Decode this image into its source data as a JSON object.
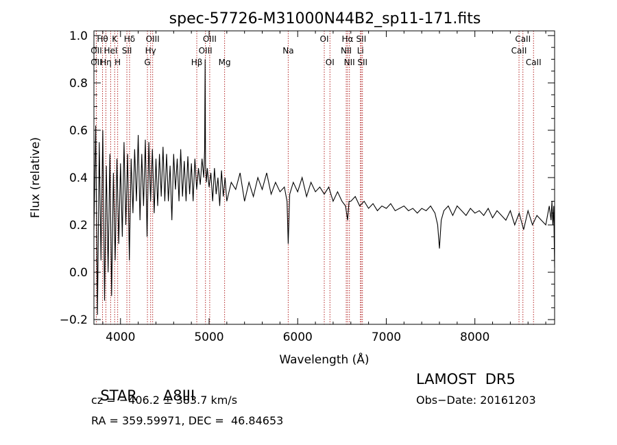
{
  "chart_data": {
    "type": "line",
    "title": "spec-57726-M31000N44B2_sp11-171.fits",
    "xlabel": "Wavelength (Å)",
    "ylabel": "Flux (relative)",
    "xlim": [
      3700,
      8900
    ],
    "ylim": [
      -0.22,
      1.02
    ],
    "xticks": [
      4000,
      5000,
      6000,
      7000,
      8000
    ],
    "yticks": [
      -0.2,
      0.0,
      0.2,
      0.4,
      0.6,
      0.8,
      1.0
    ],
    "xtick_labels": [
      "4000",
      "5000",
      "6000",
      "7000",
      "8000"
    ],
    "ytick_labels": [
      "−0.2",
      "0.0",
      "0.2",
      "0.4",
      "0.6",
      "0.8",
      "1.0"
    ],
    "spectral_lines": [
      {
        "label": "Hθ",
        "wave": 3797,
        "row": 1
      },
      {
        "label": "OII",
        "wave": 3727,
        "row": 2
      },
      {
        "label": "OII",
        "wave": 3727,
        "row": 3
      },
      {
        "label": "Hη",
        "wave": 3835,
        "row": 3
      },
      {
        "label": "K",
        "wave": 3934,
        "row": 1
      },
      {
        "label": "HeI",
        "wave": 3889,
        "row": 2
      },
      {
        "label": "H",
        "wave": 3968,
        "row": 3
      },
      {
        "label": "Hδ",
        "wave": 4102,
        "row": 1
      },
      {
        "label": "SII",
        "wave": 4072,
        "row": 2
      },
      {
        "label": "OIII",
        "wave": 4363,
        "row": 1
      },
      {
        "label": "Hγ",
        "wave": 4340,
        "row": 2
      },
      {
        "label": "G",
        "wave": 4304,
        "row": 3
      },
      {
        "label": "Hβ",
        "wave": 4861,
        "row": 3
      },
      {
        "label": "OIII",
        "wave": 5007,
        "row": 1
      },
      {
        "label": "OIII",
        "wave": 4959,
        "row": 2
      },
      {
        "label": "Mg",
        "wave": 5175,
        "row": 3
      },
      {
        "label": "Na",
        "wave": 5893,
        "row": 2
      },
      {
        "label": "OI",
        "wave": 6300,
        "row": 1
      },
      {
        "label": "OI",
        "wave": 6364,
        "row": 3
      },
      {
        "label": "Hα",
        "wave": 6563,
        "row": 1
      },
      {
        "label": "NII",
        "wave": 6548,
        "row": 2
      },
      {
        "label": "NII",
        "wave": 6584,
        "row": 3
      },
      {
        "label": "SII",
        "wave": 6717,
        "row": 1
      },
      {
        "label": "Li",
        "wave": 6708,
        "row": 2
      },
      {
        "label": "SII",
        "wave": 6731,
        "row": 3
      },
      {
        "label": "CaII",
        "wave": 8542,
        "row": 1
      },
      {
        "label": "CaII",
        "wave": 8498,
        "row": 2
      },
      {
        "label": "CaII",
        "wave": 8662,
        "row": 3
      }
    ],
    "series": [
      {
        "x": [
          3700,
          3720,
          3740,
          3760,
          3780,
          3800,
          3820,
          3840,
          3860,
          3880,
          3900,
          3920,
          3940,
          3960,
          3980,
          4000,
          4020,
          4040,
          4060,
          4080,
          4100,
          4120,
          4140,
          4160,
          4180,
          4200,
          4220,
          4240,
          4260,
          4280,
          4300,
          4320,
          4340,
          4360,
          4380,
          4400,
          4420,
          4440,
          4460,
          4480,
          4500,
          4520,
          4540,
          4560,
          4580,
          4600,
          4620,
          4640,
          4660,
          4680,
          4700,
          4720,
          4740,
          4760,
          4780,
          4800,
          4820,
          4840,
          4860,
          4880,
          4900,
          4920,
          4940,
          4950,
          4955,
          4960,
          4970,
          4980,
          5000,
          5020,
          5040,
          5060,
          5080,
          5100,
          5120,
          5140,
          5160,
          5180,
          5200,
          5250,
          5300,
          5350,
          5400,
          5450,
          5500,
          5550,
          5600,
          5650,
          5700,
          5750,
          5800,
          5850,
          5880,
          5893,
          5910,
          5950,
          6000,
          6050,
          6100,
          6150,
          6200,
          6250,
          6300,
          6350,
          6400,
          6450,
          6500,
          6540,
          6563,
          6580,
          6600,
          6650,
          6700,
          6750,
          6800,
          6850,
          6900,
          6950,
          7000,
          7050,
          7100,
          7150,
          7200,
          7250,
          7300,
          7350,
          7400,
          7450,
          7500,
          7550,
          7580,
          7600,
          7620,
          7650,
          7700,
          7750,
          7800,
          7850,
          7900,
          7950,
          8000,
          8050,
          8100,
          8150,
          8200,
          8250,
          8300,
          8350,
          8400,
          8450,
          8500,
          8550,
          8600,
          8650,
          8700,
          8750,
          8800,
          8840,
          8860,
          8870,
          8880,
          8890,
          8900
        ],
        "y": [
          0.18,
          0.62,
          -0.18,
          0.55,
          0.05,
          0.6,
          -0.12,
          0.45,
          0.0,
          0.5,
          -0.1,
          0.42,
          0.05,
          0.48,
          0.12,
          0.46,
          0.15,
          0.55,
          0.2,
          0.5,
          0.05,
          0.48,
          0.25,
          0.52,
          0.3,
          0.58,
          0.22,
          0.5,
          0.28,
          0.56,
          0.15,
          0.55,
          0.3,
          0.52,
          0.25,
          0.48,
          0.28,
          0.5,
          0.32,
          0.53,
          0.3,
          0.5,
          0.3,
          0.45,
          0.22,
          0.5,
          0.35,
          0.48,
          0.3,
          0.52,
          0.32,
          0.47,
          0.3,
          0.49,
          0.33,
          0.46,
          0.3,
          0.48,
          0.35,
          0.44,
          0.37,
          0.48,
          0.4,
          0.52,
          0.9,
          0.45,
          0.38,
          0.44,
          0.36,
          0.42,
          0.3,
          0.44,
          0.33,
          0.4,
          0.28,
          0.43,
          0.32,
          0.4,
          0.3,
          0.38,
          0.35,
          0.42,
          0.3,
          0.38,
          0.32,
          0.4,
          0.35,
          0.42,
          0.33,
          0.38,
          0.34,
          0.36,
          0.3,
          0.12,
          0.33,
          0.38,
          0.34,
          0.4,
          0.32,
          0.38,
          0.34,
          0.36,
          0.33,
          0.36,
          0.3,
          0.34,
          0.3,
          0.28,
          0.22,
          0.3,
          0.3,
          0.32,
          0.28,
          0.3,
          0.27,
          0.29,
          0.26,
          0.28,
          0.27,
          0.29,
          0.26,
          0.27,
          0.28,
          0.26,
          0.27,
          0.25,
          0.27,
          0.26,
          0.28,
          0.25,
          0.2,
          0.1,
          0.22,
          0.26,
          0.28,
          0.24,
          0.28,
          0.26,
          0.24,
          0.27,
          0.25,
          0.26,
          0.24,
          0.27,
          0.23,
          0.26,
          0.24,
          0.22,
          0.26,
          0.2,
          0.25,
          0.18,
          0.26,
          0.2,
          0.24,
          0.22,
          0.2,
          0.28,
          0.22,
          0.3,
          0.2,
          0.28,
          0.02
        ]
      }
    ]
  },
  "info": {
    "object_type": "STAR",
    "subclass": "A8III",
    "survey": "LAMOST  DR5",
    "cz": "cz = −406.2 ± 383.7 km/s",
    "obs_date": "Obs−Date: 20161203",
    "coords": "RA = 359.59971, DEC =  46.84653"
  }
}
